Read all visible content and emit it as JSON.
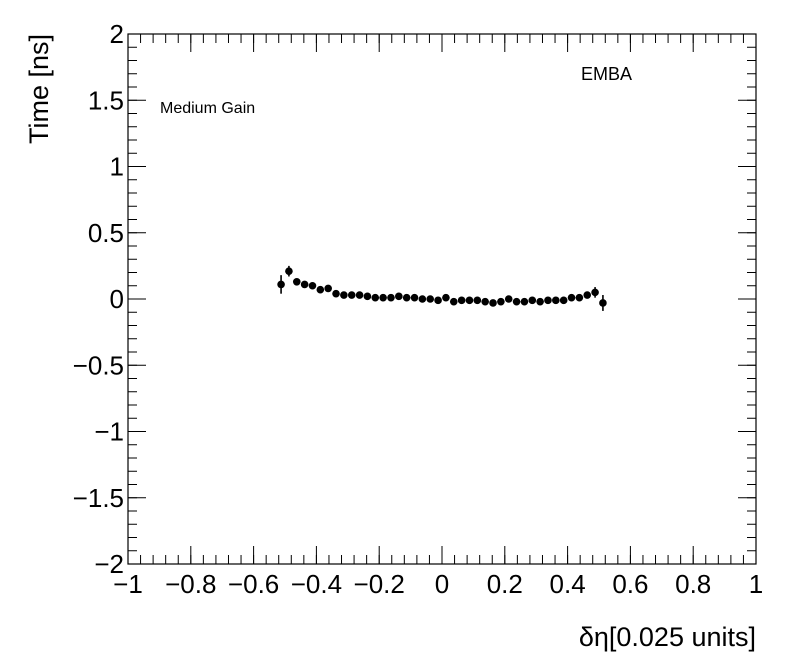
{
  "chart_data": {
    "type": "scatter",
    "xlabel": "δη[0.025 units]",
    "ylabel": "Time [ns]",
    "xlim": [
      -1,
      1
    ],
    "ylim": [
      -2,
      2
    ],
    "x_ticks": [
      "−1",
      "−0.8",
      "−0.6",
      "−0.4",
      "−0.2",
      "0",
      "0.2",
      "0.4",
      "0.6",
      "0.8",
      "1"
    ],
    "x_tick_values": [
      -1,
      -0.8,
      -0.6,
      -0.4,
      -0.2,
      0,
      0.2,
      0.4,
      0.6,
      0.8,
      1
    ],
    "y_ticks": [
      "−2",
      "−1.5",
      "−1",
      "−0.5",
      "0",
      "0.5",
      "1",
      "1.5",
      "2"
    ],
    "y_tick_values": [
      -2,
      -1.5,
      -1,
      -0.5,
      0,
      0.5,
      1,
      1.5,
      2
    ],
    "annotations": {
      "gain": "Medium Gain",
      "partition": "EMBA"
    },
    "grid": false,
    "marker_color": "#000000",
    "series": [
      {
        "x": [
          -0.5125,
          -0.4875,
          -0.4625,
          -0.4375,
          -0.4125,
          -0.3875,
          -0.3625,
          -0.3375,
          -0.3125,
          -0.2875,
          -0.2625,
          -0.2375,
          -0.2125,
          -0.1875,
          -0.1625,
          -0.1375,
          -0.1125,
          -0.0875,
          -0.0625,
          -0.0375,
          -0.0125,
          0.0125,
          0.0375,
          0.0625,
          0.0875,
          0.1125,
          0.1375,
          0.1625,
          0.1875,
          0.2125,
          0.2375,
          0.2625,
          0.2875,
          0.3125,
          0.3375,
          0.3625,
          0.3875,
          0.4125,
          0.4375,
          0.4625,
          0.4875,
          0.5125
        ],
        "y": [
          0.11,
          0.21,
          0.13,
          0.11,
          0.1,
          0.07,
          0.08,
          0.04,
          0.03,
          0.03,
          0.03,
          0.02,
          0.01,
          0.01,
          0.01,
          0.02,
          0.01,
          0.01,
          0.0,
          0.0,
          -0.01,
          0.01,
          -0.02,
          -0.01,
          -0.01,
          -0.01,
          -0.02,
          -0.03,
          -0.02,
          0.0,
          -0.02,
          -0.02,
          -0.01,
          -0.02,
          -0.01,
          -0.01,
          -0.01,
          0.01,
          0.01,
          0.03,
          0.05,
          -0.03
        ],
        "yerr": [
          0.07,
          0.04,
          0.02,
          0.02,
          0.02,
          0.02,
          0.02,
          0.02,
          0.02,
          0.015,
          0.015,
          0.015,
          0.015,
          0.015,
          0.015,
          0.015,
          0.015,
          0.015,
          0.015,
          0.015,
          0.015,
          0.015,
          0.015,
          0.015,
          0.015,
          0.015,
          0.015,
          0.015,
          0.015,
          0.015,
          0.015,
          0.015,
          0.015,
          0.015,
          0.015,
          0.015,
          0.015,
          0.02,
          0.02,
          0.02,
          0.04,
          0.06
        ]
      }
    ]
  }
}
